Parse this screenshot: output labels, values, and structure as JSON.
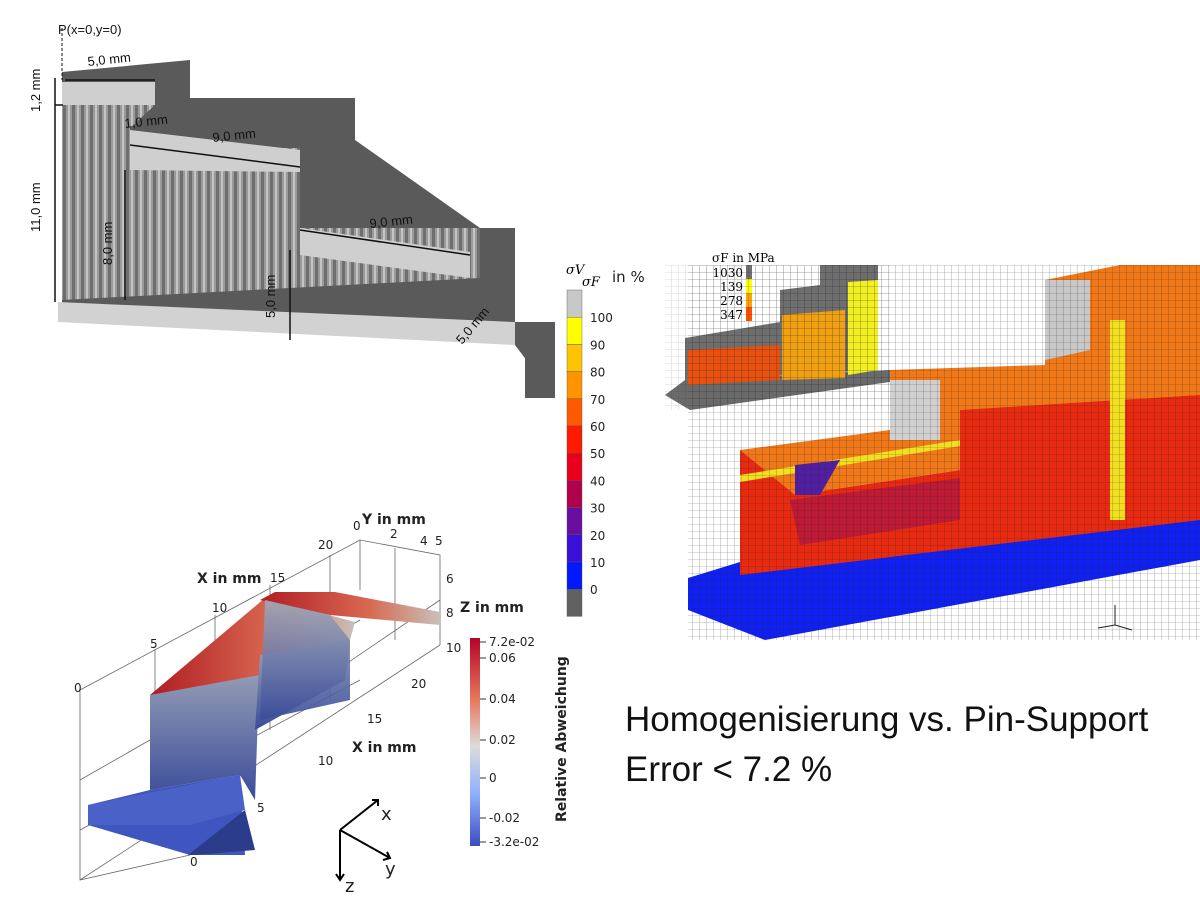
{
  "cad": {
    "point_label": "P(x=0,y=0)",
    "dims": [
      "5,0 mm",
      "1,2 mm",
      "11,0 mm",
      "1,0 mm",
      "9,0 mm",
      "8,0 mm",
      "9,0 mm",
      "5,0 mm",
      "5,0 mm"
    ]
  },
  "stress_colorbar": {
    "title_num": "σV",
    "title_den": "σF",
    "title_unit": "in %",
    "ticks": [
      "100",
      "90",
      "80",
      "70",
      "60",
      "50",
      "40",
      "30",
      "20",
      "10",
      "0"
    ],
    "colors": [
      "#c8c8c8",
      "#ffff00",
      "#ffc400",
      "#ff9400",
      "#ff5a00",
      "#ff1a00",
      "#e8001c",
      "#b0004e",
      "#6a0ea0",
      "#3a10d8",
      "#0018ff",
      "#606060"
    ]
  },
  "yield_legend": {
    "title": "σF in MPa",
    "entries": [
      {
        "value": "1030",
        "color": "#707070"
      },
      {
        "value": "139",
        "color": "#ffff00"
      },
      {
        "value": "278",
        "color": "#ffa500"
      },
      {
        "value": "347",
        "color": "#ff5000"
      }
    ]
  },
  "deviation_plot": {
    "y_axis_label": "Y in mm",
    "y_ticks": [
      "0",
      "2",
      "4",
      "5"
    ],
    "x_axis_label_top": "X in mm",
    "x_ticks_top": [
      "0",
      "5",
      "10",
      "15",
      "20"
    ],
    "z_axis_label": "Z in mm",
    "z_ticks": [
      "6",
      "8",
      "10"
    ],
    "x_axis_label_bottom": "X in mm",
    "x_ticks_bottom": [
      "0",
      "5",
      "10",
      "15",
      "20"
    ],
    "colorbar_title": "Relative Abweichung",
    "colorbar_ticks": [
      "7.2e-02",
      "0.06",
      "0.04",
      "0.02",
      "0",
      "-0.02",
      "-3.2e-02"
    ],
    "triad": {
      "x": "x",
      "y": "y",
      "z": "z"
    }
  },
  "headline": {
    "line1": "Homogenisierung vs. Pin-Support",
    "line2": "Error < 7.2 %"
  }
}
